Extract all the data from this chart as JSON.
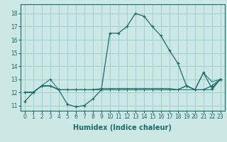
{
  "xlabel": "Humidex (Indice chaleur)",
  "bg_color": "#cce8e4",
  "grid_color": "#99cccc",
  "line_color": "#1a6b6b",
  "x": [
    0,
    1,
    2,
    3,
    4,
    5,
    6,
    7,
    8,
    9,
    10,
    11,
    12,
    13,
    14,
    15,
    16,
    17,
    18,
    19,
    20,
    21,
    22,
    23
  ],
  "series1": [
    11.3,
    12.0,
    12.5,
    12.5,
    12.2,
    11.1,
    10.9,
    11.0,
    11.5,
    12.2,
    16.5,
    16.5,
    17.0,
    18.0,
    17.8,
    17.0,
    16.3,
    15.2,
    14.2,
    12.5,
    12.2,
    13.5,
    12.3,
    13.0
  ],
  "series2": [
    12.0,
    12.0,
    12.5,
    13.0,
    12.2,
    12.2,
    12.2,
    12.2,
    12.2,
    12.2,
    12.2,
    12.2,
    12.2,
    12.2,
    12.2,
    12.2,
    12.2,
    12.2,
    12.2,
    12.5,
    12.2,
    12.2,
    12.5,
    13.0
  ],
  "series3": [
    12.0,
    12.0,
    12.5,
    12.5,
    12.2,
    12.2,
    12.2,
    12.2,
    12.2,
    12.3,
    12.3,
    12.3,
    12.3,
    12.3,
    12.3,
    12.3,
    12.3,
    12.3,
    12.2,
    12.5,
    12.2,
    12.2,
    12.2,
    13.0
  ],
  "series4": [
    12.0,
    12.0,
    12.5,
    12.5,
    12.2,
    12.2,
    12.2,
    12.2,
    12.2,
    12.2,
    12.2,
    12.2,
    12.2,
    12.2,
    12.2,
    12.2,
    12.2,
    12.2,
    12.2,
    12.5,
    12.2,
    12.2,
    12.5,
    13.0
  ],
  "series5": [
    12.0,
    12.0,
    12.5,
    12.5,
    12.2,
    12.2,
    12.2,
    12.2,
    12.2,
    12.2,
    12.2,
    12.2,
    12.2,
    12.2,
    12.2,
    12.2,
    12.2,
    12.2,
    12.2,
    12.2,
    12.2,
    13.5,
    12.8,
    13.0
  ],
  "ylim": [
    10.6,
    18.7
  ],
  "yticks": [
    11,
    12,
    13,
    14,
    15,
    16,
    17,
    18
  ],
  "xlim": [
    -0.5,
    23.5
  ],
  "xlabel_fontsize": 7,
  "tick_fontsize": 5.5
}
